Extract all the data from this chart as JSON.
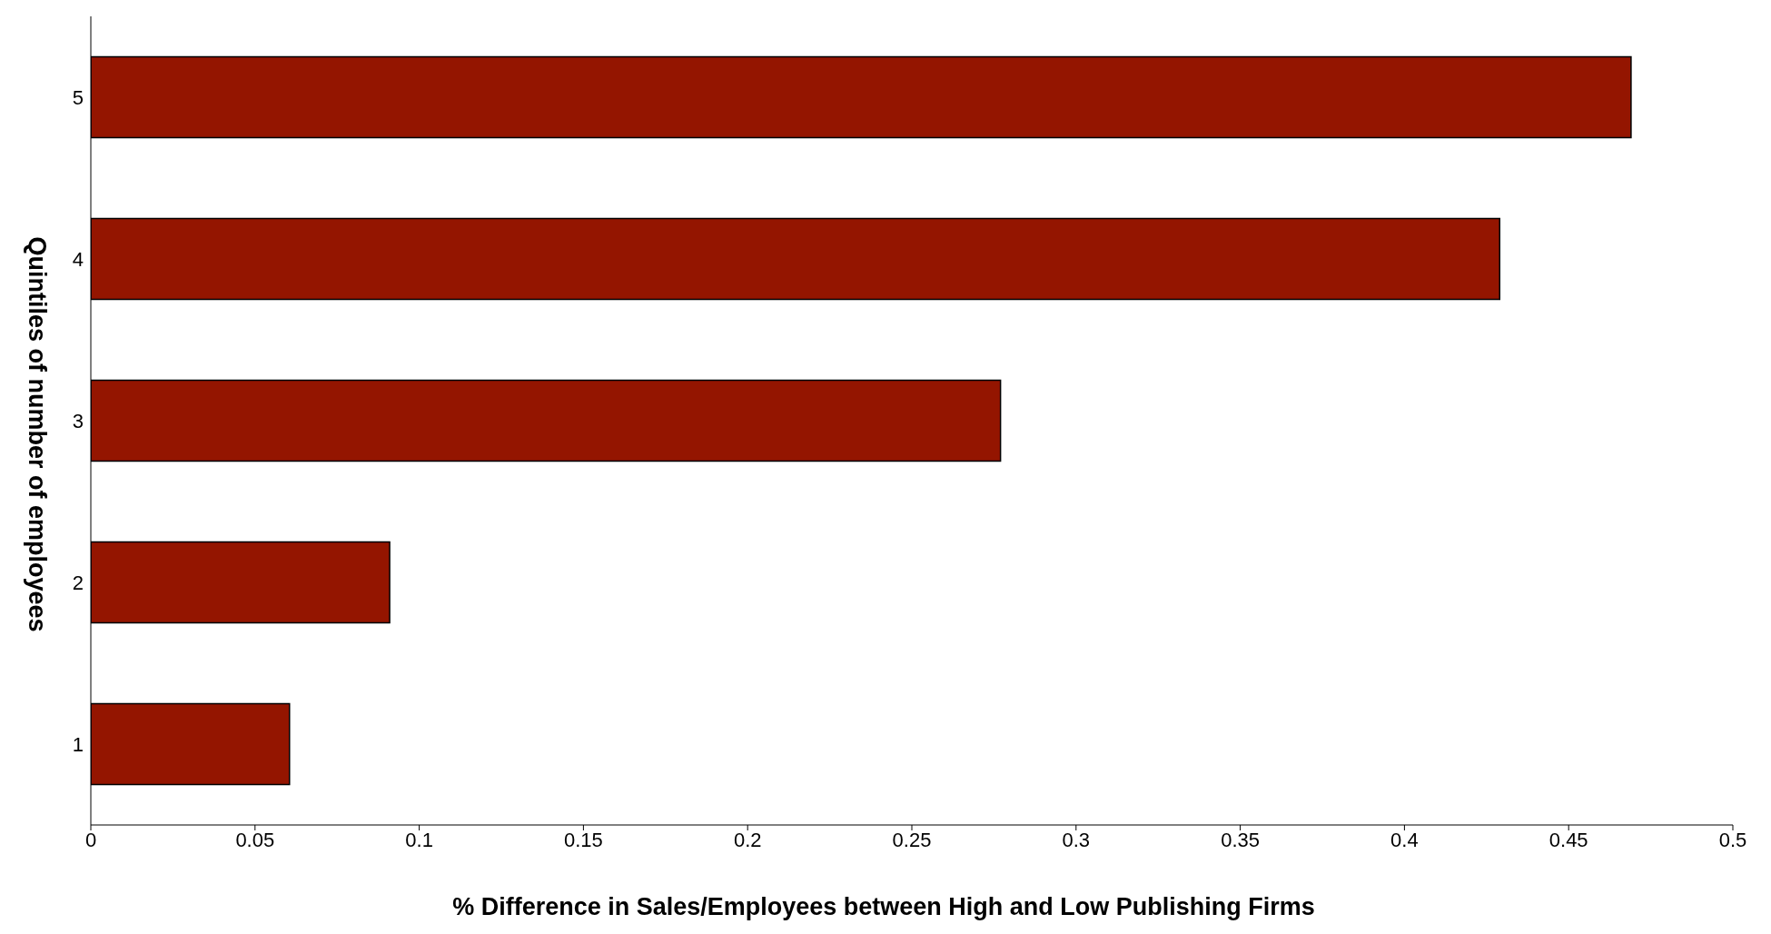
{
  "chart_data": {
    "type": "bar",
    "orientation": "horizontal",
    "xlabel": "% Difference in Sales/Employees between High and Low Publishing Firms",
    "ylabel": "Quintiles of number of employees",
    "categories": [
      "5",
      "4",
      "3",
      "2",
      "1"
    ],
    "values": [
      0.469,
      0.429,
      0.277,
      0.091,
      0.0605
    ],
    "color": "#941500",
    "xlim": [
      0,
      0.5
    ],
    "xticks": [
      0,
      0.05,
      0.1,
      0.15,
      0.2,
      0.25,
      0.3,
      0.35,
      0.4,
      0.45,
      0.5
    ],
    "grid": false,
    "legend": false
  }
}
